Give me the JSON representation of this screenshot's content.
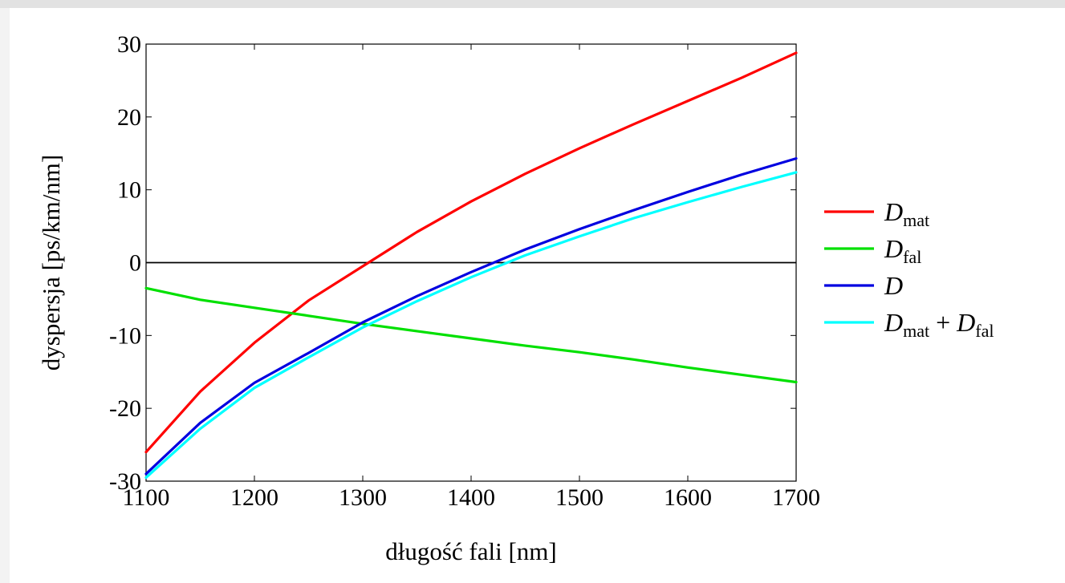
{
  "chart_data": {
    "type": "line",
    "xlabel": "długość fali [nm]",
    "ylabel": "dyspersja [ps/km/nm]",
    "xlim": [
      1100,
      1700
    ],
    "ylim": [
      -30,
      30
    ],
    "xticks": [
      "1100",
      "1200",
      "1300",
      "1400",
      "1500",
      "1600",
      "1700"
    ],
    "yticks": [
      "30",
      "20",
      "10",
      "0",
      "-10",
      "-20",
      "-30"
    ],
    "legend_position": "outside-right",
    "grid": false,
    "zero_line": true,
    "series": [
      {
        "name": "Dmat",
        "legend": {
          "main": "D",
          "sub": "mat"
        },
        "color": "#ff0000",
        "x": [
          1100,
          1150,
          1200,
          1250,
          1300,
          1350,
          1400,
          1450,
          1500,
          1550,
          1600,
          1650,
          1700
        ],
        "y": [
          -26.0,
          -17.7,
          -11.0,
          -5.2,
          -0.5,
          4.2,
          8.4,
          12.2,
          15.7,
          19.0,
          22.2,
          25.4,
          28.8
        ]
      },
      {
        "name": "Dfal",
        "legend": {
          "main": "D",
          "sub": "fal"
        },
        "color": "#00e000",
        "x": [
          1100,
          1150,
          1200,
          1250,
          1300,
          1350,
          1400,
          1450,
          1500,
          1550,
          1600,
          1650,
          1700
        ],
        "y": [
          -3.5,
          -5.1,
          -6.2,
          -7.3,
          -8.4,
          -9.4,
          -10.4,
          -11.4,
          -12.3,
          -13.3,
          -14.4,
          -15.4,
          -16.4
        ]
      },
      {
        "name": "D",
        "legend": {
          "main": "D",
          "sub": ""
        },
        "color": "#0000e0",
        "x": [
          1100,
          1150,
          1200,
          1250,
          1300,
          1350,
          1400,
          1450,
          1500,
          1550,
          1600,
          1650,
          1700
        ],
        "y": [
          -29.0,
          -22.0,
          -16.5,
          -12.4,
          -8.2,
          -4.6,
          -1.3,
          1.8,
          4.6,
          7.2,
          9.7,
          12.1,
          14.3
        ]
      },
      {
        "name": "Dmat + Dfal",
        "legend": {
          "main": "D",
          "sub": "mat",
          "plus": "+",
          "main2": "D",
          "sub2": "fal"
        },
        "color": "#00ffff",
        "x": [
          1100,
          1150,
          1200,
          1250,
          1300,
          1350,
          1400,
          1450,
          1500,
          1550,
          1600,
          1650,
          1700
        ],
        "y": [
          -29.5,
          -22.8,
          -17.2,
          -13.0,
          -8.9,
          -5.3,
          -2.0,
          1.0,
          3.6,
          6.1,
          8.3,
          10.4,
          12.4
        ]
      }
    ]
  }
}
